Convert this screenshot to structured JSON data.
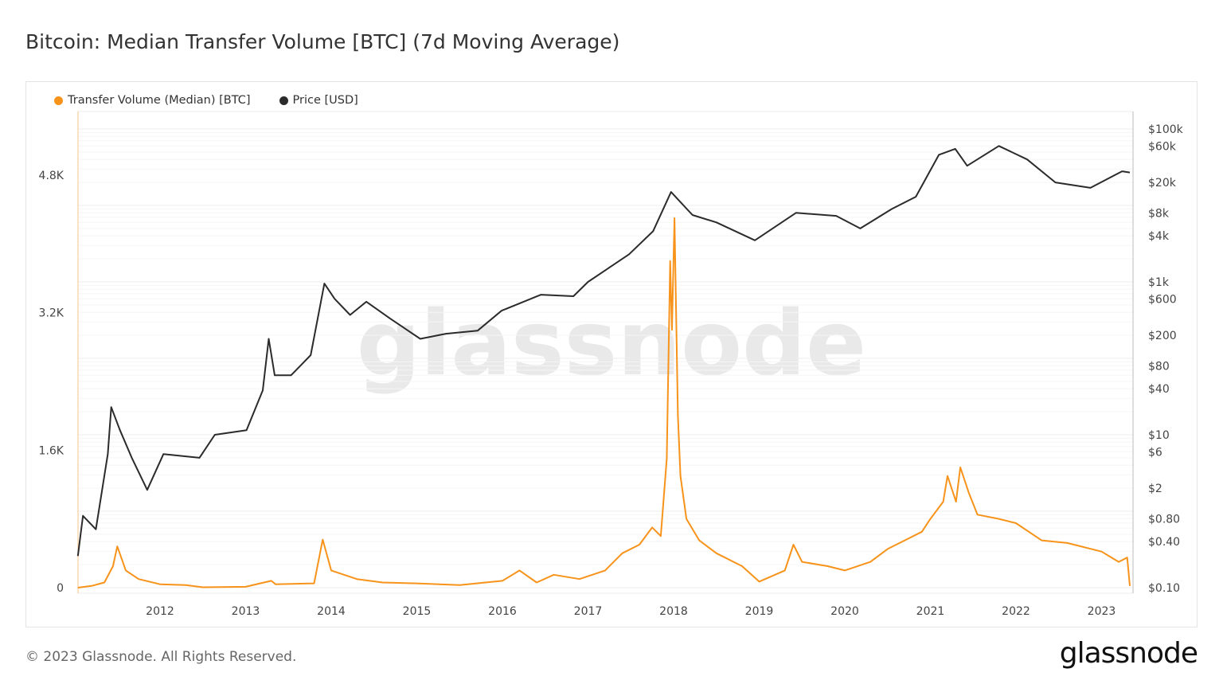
{
  "title": "Bitcoin: Median Transfer Volume [BTC] (7d Moving Average)",
  "footer": "© 2023 Glassnode. All Rights Reserved.",
  "logo": "glassnode",
  "watermark": "glassnode",
  "chart_data": {
    "type": "line",
    "title": "Bitcoin: Median Transfer Volume [BTC] (7d Moving Average)",
    "legend_position": "top-left",
    "grid": true,
    "x_ticks": [
      "2012",
      "2013",
      "2014",
      "2015",
      "2016",
      "2017",
      "2018",
      "2019",
      "2020",
      "2021",
      "2022",
      "2023"
    ],
    "x_range": [
      2011.04,
      2023.33
    ],
    "y_left": {
      "ticks": [
        "0",
        "1.6K",
        "3.2K",
        "4.8K"
      ],
      "tick_values": [
        0,
        1600,
        3200,
        4800
      ],
      "range": [
        0,
        5600
      ]
    },
    "y_right": {
      "scale": "log",
      "ticks": [
        "$100k",
        "$60k",
        "$20k",
        "$8k",
        "$4k",
        "$1k",
        "$600",
        "$200",
        "$80",
        "$40",
        "$10",
        "$6",
        "$2",
        "$0.80",
        "$0.40",
        "$0.10"
      ],
      "tick_values": [
        100000,
        60000,
        20000,
        8000,
        4000,
        1000,
        600,
        200,
        80,
        40,
        10,
        6,
        2,
        0.8,
        0.4,
        0.1
      ]
    },
    "series": [
      {
        "name": "Transfer Volume (Median) [BTC]",
        "color": "#f7931a",
        "axis": "left",
        "points": [
          [
            2011.04,
            0
          ],
          [
            2011.2,
            20
          ],
          [
            2011.35,
            60
          ],
          [
            2011.45,
            250
          ],
          [
            2011.5,
            480
          ],
          [
            2011.6,
            200
          ],
          [
            2011.75,
            100
          ],
          [
            2012,
            40
          ],
          [
            2012.3,
            30
          ],
          [
            2012.5,
            5
          ],
          [
            2013,
            10
          ],
          [
            2013.3,
            80
          ],
          [
            2013.35,
            40
          ],
          [
            2013.8,
            50
          ],
          [
            2013.9,
            560
          ],
          [
            2014,
            200
          ],
          [
            2014.3,
            100
          ],
          [
            2014.6,
            60
          ],
          [
            2015,
            50
          ],
          [
            2015.5,
            30
          ],
          [
            2016,
            80
          ],
          [
            2016.2,
            200
          ],
          [
            2016.4,
            60
          ],
          [
            2016.6,
            150
          ],
          [
            2016.9,
            100
          ],
          [
            2017.2,
            200
          ],
          [
            2017.4,
            400
          ],
          [
            2017.6,
            500
          ],
          [
            2017.75,
            700
          ],
          [
            2017.85,
            600
          ],
          [
            2017.92,
            1500
          ],
          [
            2017.96,
            3800
          ],
          [
            2017.98,
            3000
          ],
          [
            2018.01,
            4300
          ],
          [
            2018.05,
            2000
          ],
          [
            2018.08,
            1300
          ],
          [
            2018.15,
            800
          ],
          [
            2018.3,
            550
          ],
          [
            2018.5,
            400
          ],
          [
            2018.8,
            250
          ],
          [
            2019,
            70
          ],
          [
            2019.3,
            200
          ],
          [
            2019.4,
            500
          ],
          [
            2019.5,
            300
          ],
          [
            2019.8,
            250
          ],
          [
            2020,
            200
          ],
          [
            2020.3,
            300
          ],
          [
            2020.5,
            450
          ],
          [
            2020.7,
            550
          ],
          [
            2020.9,
            650
          ],
          [
            2021,
            800
          ],
          [
            2021.15,
            1000
          ],
          [
            2021.2,
            1300
          ],
          [
            2021.3,
            1000
          ],
          [
            2021.35,
            1400
          ],
          [
            2021.45,
            1100
          ],
          [
            2021.55,
            850
          ],
          [
            2021.8,
            800
          ],
          [
            2022,
            750
          ],
          [
            2022.3,
            550
          ],
          [
            2022.6,
            520
          ],
          [
            2023,
            420
          ],
          [
            2023.2,
            300
          ],
          [
            2023.3,
            350
          ],
          [
            2023.33,
            20
          ]
        ]
      },
      {
        "name": "Price [USD]",
        "color": "#2b2b2b",
        "axis": "right",
        "points": [
          [
            2011.04,
            0.26
          ],
          [
            2011.1,
            0.87
          ],
          [
            2011.25,
            0.58
          ],
          [
            2011.39,
            5.6
          ],
          [
            2011.43,
            23
          ],
          [
            2011.53,
            11.6
          ],
          [
            2011.67,
            5
          ],
          [
            2011.85,
            1.9
          ],
          [
            2012.04,
            5.6
          ],
          [
            2012.46,
            5
          ],
          [
            2012.64,
            10
          ],
          [
            2013.01,
            11.5
          ],
          [
            2013.2,
            38
          ],
          [
            2013.27,
            180
          ],
          [
            2013.34,
            60
          ],
          [
            2013.53,
            60
          ],
          [
            2013.76,
            110
          ],
          [
            2013.92,
            950
          ],
          [
            2014.04,
            600
          ],
          [
            2014.22,
            370
          ],
          [
            2014.41,
            550
          ],
          [
            2014.69,
            330
          ],
          [
            2015.04,
            180
          ],
          [
            2015.34,
            210
          ],
          [
            2015.71,
            230
          ],
          [
            2015.99,
            420
          ],
          [
            2016.45,
            680
          ],
          [
            2016.83,
            650
          ],
          [
            2017.0,
            1000
          ],
          [
            2017.48,
            2300
          ],
          [
            2017.76,
            4600
          ],
          [
            2017.97,
            15000
          ],
          [
            2018.22,
            7500
          ],
          [
            2018.5,
            6000
          ],
          [
            2018.95,
            3500
          ],
          [
            2019.43,
            8000
          ],
          [
            2019.9,
            7300
          ],
          [
            2020.18,
            5000
          ],
          [
            2020.55,
            9000
          ],
          [
            2020.83,
            13000
          ],
          [
            2021.1,
            46000
          ],
          [
            2021.29,
            55000
          ],
          [
            2021.43,
            33000
          ],
          [
            2021.8,
            60000
          ],
          [
            2022.13,
            40000
          ],
          [
            2022.46,
            20000
          ],
          [
            2022.87,
            17000
          ],
          [
            2023.24,
            28000
          ],
          [
            2023.33,
            27000
          ]
        ]
      }
    ]
  }
}
